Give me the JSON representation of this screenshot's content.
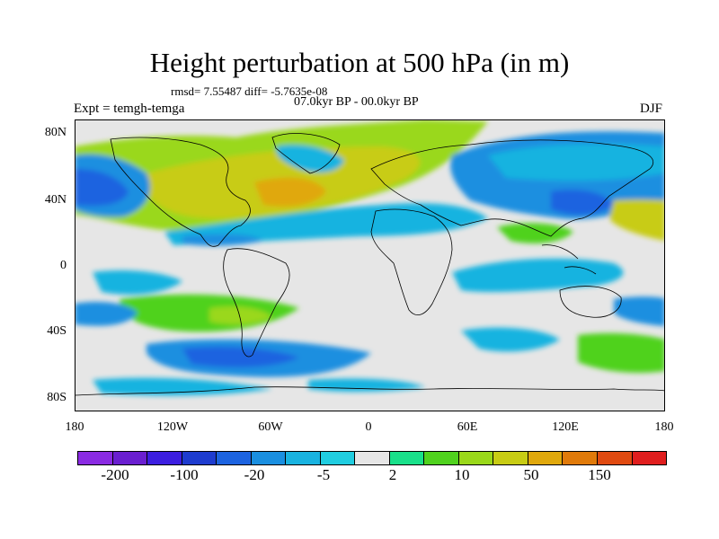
{
  "title": "Height perturbation at 500 hPa (in m)",
  "stats_line": "rmsd= 7.55487  diff= -5.7635e-08",
  "period": "07.0kyr BP - 00.0kyr BP",
  "experiment": "Expt = temgh-temga",
  "season": "DJF",
  "map": {
    "projection": "cylindrical equidistant",
    "lat_range": [
      -90,
      90
    ],
    "lon_range": [
      -180,
      180
    ],
    "lat_ticks": [
      "80N",
      "40N",
      "0",
      "40S",
      "80S"
    ],
    "lon_ticks": [
      "180",
      "120W",
      "60W",
      "0",
      "60E",
      "120E",
      "180"
    ],
    "layers": [
      "filled contours of height perturbation",
      "coastlines"
    ]
  },
  "colorbar": {
    "colors": [
      "#8a2be2",
      "#6a1fd0",
      "#3c1ee0",
      "#1e3ccf",
      "#1c63e0",
      "#1a8fe0",
      "#19b3e0",
      "#20cde0",
      "#e6e6e6",
      "#19e08a",
      "#50d21e",
      "#9ad81a",
      "#c8cc14",
      "#e0a80c",
      "#e07a0a",
      "#e04a10",
      "#e01e1e"
    ],
    "labels": [
      "-200",
      "-100",
      "-20",
      "-5",
      "2",
      "10",
      "50",
      "150"
    ]
  }
}
